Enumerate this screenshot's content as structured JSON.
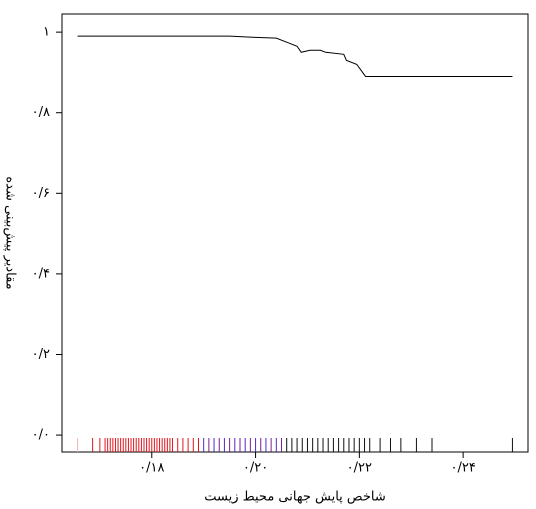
{
  "chart_data": {
    "type": "line",
    "xlabel": "شاخص پایش جهانی محیط زیست",
    "ylabel": "مقادیر پیش‌بینی شده",
    "xlim": [
      0.1627,
      0.2525
    ],
    "ylim": [
      -0.042,
      1.045
    ],
    "xticks": [
      {
        "value": 0.18,
        "label": "۰/۱۸"
      },
      {
        "value": 0.2,
        "label": "۰/۲۰"
      },
      {
        "value": 0.22,
        "label": "۰/۲۲"
      },
      {
        "value": 0.24,
        "label": "۰/۲۴"
      }
    ],
    "yticks": [
      {
        "value": 0,
        "label": "۰/۰"
      },
      {
        "value": 0.2,
        "label": "۰/۲"
      },
      {
        "value": 0.4,
        "label": "۰/۴"
      },
      {
        "value": 0.6,
        "label": "۰/۶"
      },
      {
        "value": 0.8,
        "label": "۰/۸"
      },
      {
        "value": 1,
        "label": "۱"
      }
    ],
    "series": [
      {
        "color": "#000000",
        "x": [
          0.1657,
          0.195,
          0.2,
          0.204,
          0.206,
          0.208,
          0.2088,
          0.2105,
          0.2125,
          0.2135,
          0.217,
          0.2175,
          0.2195,
          0.2212,
          0.2495
        ],
        "values": [
          0.99,
          0.99,
          0.987,
          0.985,
          0.975,
          0.965,
          0.95,
          0.955,
          0.955,
          0.95,
          0.945,
          0.93,
          0.92,
          0.89,
          0.89
        ]
      }
    ],
    "rug": [
      {
        "color": "#f4b6b6",
        "x": [
          0.1657
        ]
      },
      {
        "color": "#e3141c",
        "x": [
          0.1686,
          0.17,
          0.171,
          0.1715,
          0.172,
          0.1725,
          0.173,
          0.1735,
          0.174,
          0.1745,
          0.175,
          0.1755,
          0.176,
          0.1765,
          0.177,
          0.1775,
          0.178,
          0.1785,
          0.179,
          0.1795,
          0.18,
          0.1805,
          0.181,
          0.1815,
          0.182,
          0.1825,
          0.183,
          0.1835,
          0.184,
          0.185,
          0.186,
          0.187,
          0.188,
          0.189
        ]
      },
      {
        "color": "#4b2bd0",
        "x": [
          0.19,
          0.192,
          0.194,
          0.196,
          0.198,
          0.2,
          0.202,
          0.204
        ]
      },
      {
        "color": "#7a1f8f",
        "x": [
          0.191,
          0.193,
          0.195,
          0.197,
          0.199,
          0.201,
          0.203,
          0.205
        ]
      },
      {
        "color": "#111111",
        "x": [
          0.206,
          0.207,
          0.208,
          0.209,
          0.21,
          0.211,
          0.212,
          0.213,
          0.214,
          0.215,
          0.216,
          0.217,
          0.218,
          0.219,
          0.22,
          0.221,
          0.222,
          0.224,
          0.226,
          0.228,
          0.231,
          0.234,
          0.2495
        ]
      }
    ]
  }
}
